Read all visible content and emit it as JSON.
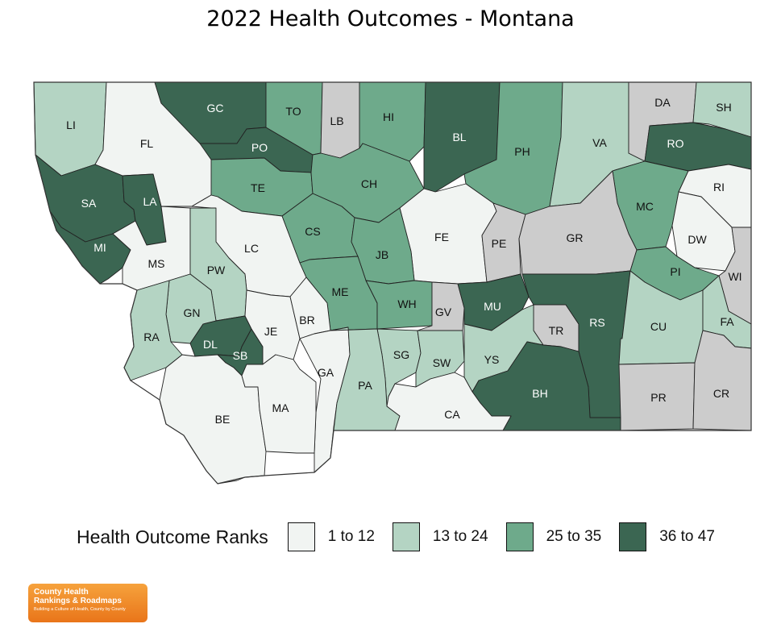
{
  "title": "2022 Health Outcomes - Montana",
  "legend": {
    "title": "Health Outcome Ranks",
    "items": [
      {
        "label": "1 to 12",
        "color": "#f1f4f2"
      },
      {
        "label": "13 to 24",
        "color": "#b4d4c3"
      },
      {
        "label": "25 to 35",
        "color": "#6eaa8b"
      },
      {
        "label": "36 to 47",
        "color": "#3b6652"
      }
    ],
    "not_ranked_color": "#cccccc"
  },
  "logo": {
    "line1": "County Health",
    "line2": "Rankings & Roadmaps",
    "tagline": "Building a Culture of Health, County by County"
  },
  "counties": [
    {
      "abbr": "LI",
      "tier": 2
    },
    {
      "abbr": "FL",
      "tier": 1
    },
    {
      "abbr": "GC",
      "tier": 4
    },
    {
      "abbr": "PO",
      "tier": 4
    },
    {
      "abbr": "TO",
      "tier": 3
    },
    {
      "abbr": "LB",
      "tier": 0
    },
    {
      "abbr": "HI",
      "tier": 3
    },
    {
      "abbr": "BL",
      "tier": 4
    },
    {
      "abbr": "PH",
      "tier": 3
    },
    {
      "abbr": "VA",
      "tier": 2
    },
    {
      "abbr": "DA",
      "tier": 0
    },
    {
      "abbr": "SH",
      "tier": 2
    },
    {
      "abbr": "RO",
      "tier": 4
    },
    {
      "abbr": "SA",
      "tier": 4
    },
    {
      "abbr": "LA",
      "tier": 4
    },
    {
      "abbr": "TE",
      "tier": 3
    },
    {
      "abbr": "CH",
      "tier": 3
    },
    {
      "abbr": "MC",
      "tier": 3
    },
    {
      "abbr": "RI",
      "tier": 1
    },
    {
      "abbr": "DW",
      "tier": 1
    },
    {
      "abbr": "MI",
      "tier": 4
    },
    {
      "abbr": "MS",
      "tier": 1
    },
    {
      "abbr": "LC",
      "tier": 1
    },
    {
      "abbr": "CS",
      "tier": 3
    },
    {
      "abbr": "FE",
      "tier": 1
    },
    {
      "abbr": "PE",
      "tier": 0
    },
    {
      "abbr": "GR",
      "tier": 0
    },
    {
      "abbr": "JB",
      "tier": 3
    },
    {
      "abbr": "PW",
      "tier": 2
    },
    {
      "abbr": "ME",
      "tier": 3
    },
    {
      "abbr": "WH",
      "tier": 3
    },
    {
      "abbr": "GV",
      "tier": 0
    },
    {
      "abbr": "MU",
      "tier": 4
    },
    {
      "abbr": "PI",
      "tier": 3
    },
    {
      "abbr": "WI",
      "tier": 0
    },
    {
      "abbr": "GN",
      "tier": 2
    },
    {
      "abbr": "RA",
      "tier": 2
    },
    {
      "abbr": "DL",
      "tier": 4
    },
    {
      "abbr": "SB",
      "tier": 4
    },
    {
      "abbr": "JE",
      "tier": 1
    },
    {
      "abbr": "BR",
      "tier": 1
    },
    {
      "abbr": "TR",
      "tier": 0
    },
    {
      "abbr": "RS",
      "tier": 4
    },
    {
      "abbr": "CU",
      "tier": 2
    },
    {
      "abbr": "FA",
      "tier": 2
    },
    {
      "abbr": "GA",
      "tier": 1
    },
    {
      "abbr": "SG",
      "tier": 2
    },
    {
      "abbr": "SW",
      "tier": 2
    },
    {
      "abbr": "YS",
      "tier": 2
    },
    {
      "abbr": "PA",
      "tier": 2
    },
    {
      "abbr": "BH",
      "tier": 4
    },
    {
      "abbr": "BE",
      "tier": 1
    },
    {
      "abbr": "MA",
      "tier": 1
    },
    {
      "abbr": "CA",
      "tier": 1
    },
    {
      "abbr": "PR",
      "tier": 0
    },
    {
      "abbr": "CR",
      "tier": 0
    }
  ]
}
